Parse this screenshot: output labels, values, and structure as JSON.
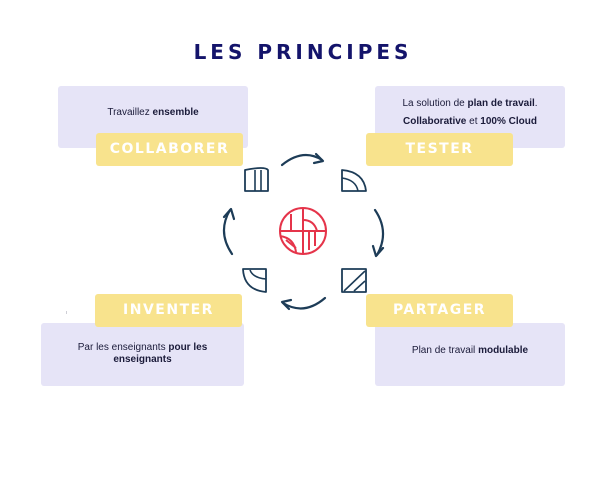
{
  "title": "LES PRINCIPES",
  "quadrants": {
    "collaborer": {
      "tag": "COLLABORER",
      "desc_plain": "Travaillez ",
      "desc_bold": "ensemble"
    },
    "tester": {
      "tag": "TESTER",
      "line1_plain": "La solution de ",
      "line1_bold": "plan de travail",
      "line1_end": ".",
      "line2_bold1": "Collaborative",
      "line2_plain": " et ",
      "line2_bold2": "100% Cloud"
    },
    "inventer": {
      "tag": "INVENTER",
      "line1_plain": "Par les enseignants ",
      "line1_bold": "pour les",
      "line2_bold": "enseignants"
    },
    "partager": {
      "tag": "PARTAGER",
      "desc_plain": "Plan de travail ",
      "desc_bold": "modulable"
    }
  },
  "colors": {
    "title": "#14146b",
    "card_background": "#e6e4f7",
    "tag_background": "#f8e38d",
    "tag_text": "#ffffff",
    "cycle_stroke": "#1d3c57",
    "logo_stroke": "#e5344a"
  },
  "icons": [
    "cycle-arrow-icon",
    "quarter-tile-icon",
    "center-logo-icon"
  ]
}
